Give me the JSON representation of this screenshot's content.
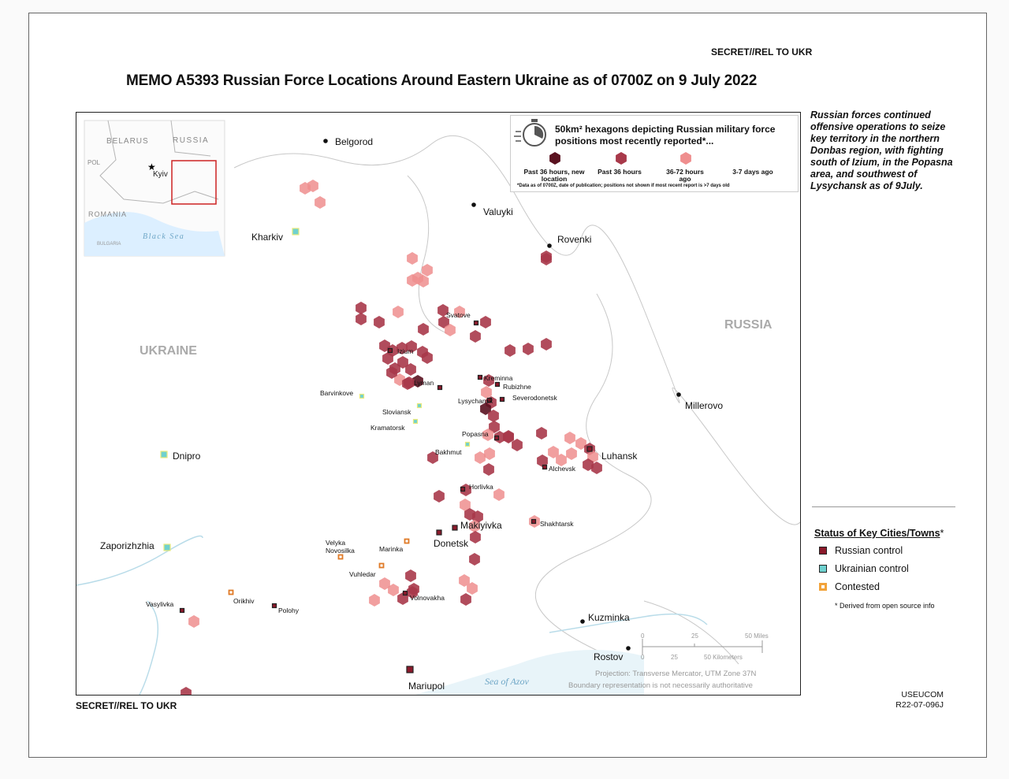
{
  "header": {
    "classification_top": "SECRET//REL TO UKR",
    "title": "MEMO A5393   Russian Force Locations Around Eastern Ukraine as of 0700Z on 9 July 2022",
    "classification_bottom": "SECRET//REL TO UKR"
  },
  "sidebar": {
    "summary": "Russian forces continued offensive operations to seize key territory in the northern Donbas region, with fighting south of Izium, in the Popasna area, and southwest of Lysychansk as of 9July.",
    "status_title": "Status of Key Cities/Towns",
    "status_title_mark": "*",
    "statuses": [
      {
        "label": "Russian control",
        "color": "#8b1a2b"
      },
      {
        "label": "Ukrainian control",
        "color": "#6fd1cf"
      },
      {
        "label": "Contested",
        "color": "#f2a33a"
      }
    ],
    "footnote": "* Derived from open source info",
    "footer_org": "USEUCOM",
    "footer_id": "R22-07-096J"
  },
  "hex_legend": {
    "title": "50km² hexagons depicting Russian military force positions most recently reported*...",
    "items": [
      {
        "label": "Past 36 hours, new location",
        "color": "#5a1220"
      },
      {
        "label": "Past 36 hours",
        "color": "#a8394a"
      },
      {
        "label": "36-72 hours ago",
        "color": "#ef8e8e"
      },
      {
        "label": "3-7 days ago",
        "color": "#ffffff"
      }
    ],
    "note": "*Data as of 0700Z, date of publication; positions not shown if most recent report is >7 days old"
  },
  "inset": {
    "labels": [
      "BELARUS",
      "RUSSIA",
      "POL",
      "Kyiv",
      "ROMANIA",
      "BULGARIA",
      "Black Sea"
    ]
  },
  "map_labels": {
    "ukraine": "UKRAINE",
    "russia": "RUSSIA",
    "sea_of_azov": "Sea of Azov"
  },
  "cities": [
    {
      "name": "Belgorod",
      "status": "none"
    },
    {
      "name": "Valuyki",
      "status": "none"
    },
    {
      "name": "Rovenki",
      "status": "none"
    },
    {
      "name": "Kharkiv",
      "status": "ukrainian"
    },
    {
      "name": "Svatove",
      "status": "russian"
    },
    {
      "name": "Izium",
      "status": "russian"
    },
    {
      "name": "Lyman",
      "status": "russian"
    },
    {
      "name": "Kreminna",
      "status": "russian"
    },
    {
      "name": "Rubizhne",
      "status": "russian"
    },
    {
      "name": "Severodonetsk",
      "status": "russian"
    },
    {
      "name": "Lysychansk",
      "status": "russian"
    },
    {
      "name": "Barvinkove",
      "status": "ukrainian"
    },
    {
      "name": "Sloviansk",
      "status": "ukrainian"
    },
    {
      "name": "Kramatorsk",
      "status": "ukrainian"
    },
    {
      "name": "Popasna",
      "status": "russian"
    },
    {
      "name": "Bakhmut",
      "status": "ukrainian"
    },
    {
      "name": "Millerovo",
      "status": "none"
    },
    {
      "name": "Dnipro",
      "status": "ukrainian"
    },
    {
      "name": "Luhansk",
      "status": "russian"
    },
    {
      "name": "Alchevsk",
      "status": "russian"
    },
    {
      "name": "Horlivka",
      "status": "russian"
    },
    {
      "name": "Makiyivka",
      "status": "russian"
    },
    {
      "name": "Shakhtarsk",
      "status": "russian"
    },
    {
      "name": "Donetsk",
      "status": "russian"
    },
    {
      "name": "Zaporizhzhia",
      "status": "ukrainian"
    },
    {
      "name": "Velyka Novosilka",
      "status": "contested"
    },
    {
      "name": "Marinka",
      "status": "contested"
    },
    {
      "name": "Vuhledar",
      "status": "contested"
    },
    {
      "name": "Orikhiv",
      "status": "contested"
    },
    {
      "name": "Vasylivka",
      "status": "russian"
    },
    {
      "name": "Polohy",
      "status": "russian"
    },
    {
      "name": "Volnovakha",
      "status": "russian"
    },
    {
      "name": "Kuzminka",
      "status": "none"
    },
    {
      "name": "Rostov",
      "status": "none"
    },
    {
      "name": "Mariupol",
      "status": "russian"
    }
  ],
  "scale_bar": {
    "miles_ticks": [
      "0",
      "25",
      "50 Miles"
    ],
    "km_ticks": [
      "0",
      "25",
      "50 Kilometers"
    ]
  },
  "projection_note": "Projection: Transverse Mercator, UTM Zone 37N",
  "boundary_note": "Boundary representation is not necessarily authoritative"
}
